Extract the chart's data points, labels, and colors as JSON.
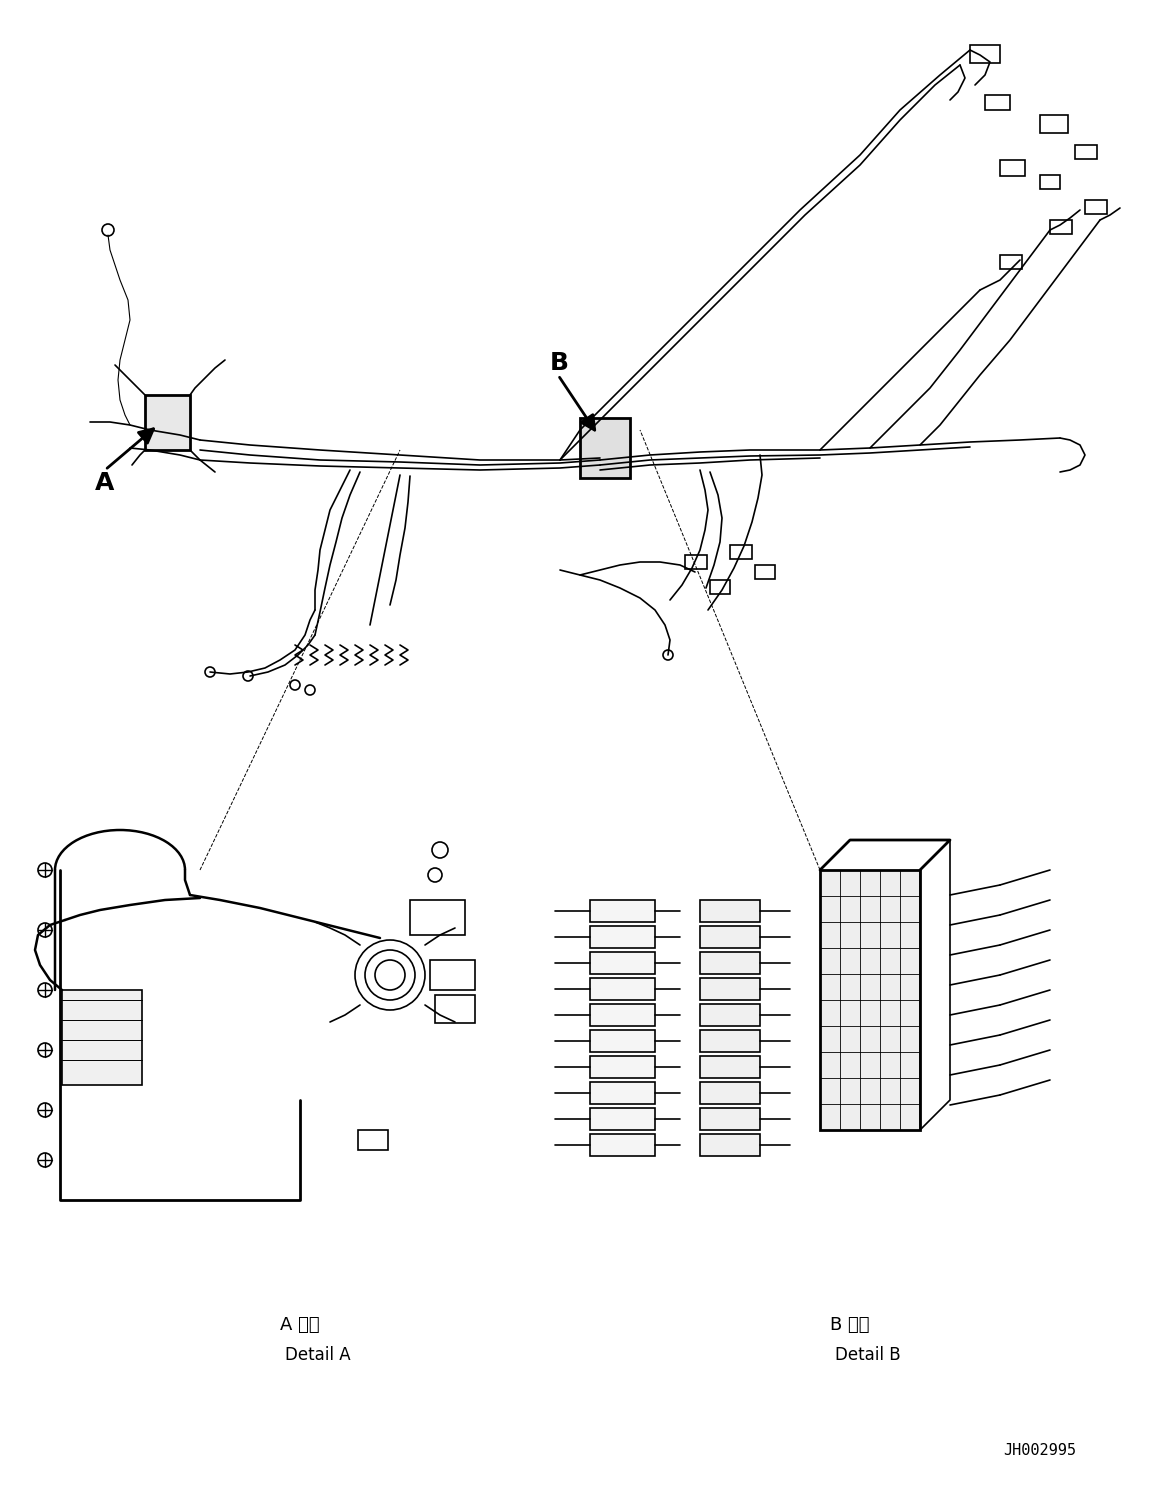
{
  "bg_color": "#ffffff",
  "line_color": "#000000",
  "fig_width": 11.63,
  "fig_height": 14.88,
  "part_number": "JH002995",
  "label_A": "A",
  "label_B": "B",
  "detail_A_jp": "A 詳細",
  "detail_A_en": "Detail A",
  "detail_B_jp": "B 詳細",
  "detail_B_en": "Detail B",
  "font_size_label": 18,
  "font_size_detail": 12,
  "font_size_part": 11
}
